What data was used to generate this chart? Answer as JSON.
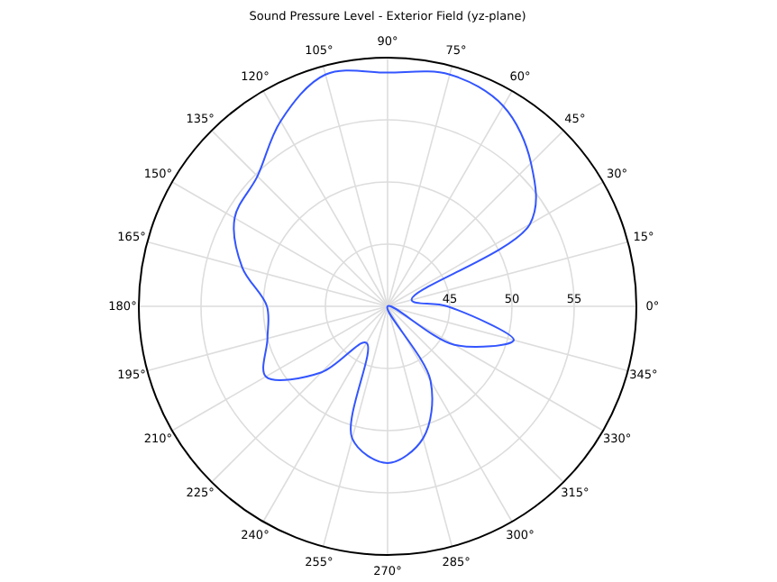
{
  "chart_data": {
    "type": "radar",
    "title": "Sound Pressure Level - Exterior Field (yz-plane)",
    "categories": [
      "90°",
      "75°",
      "60°",
      "45°",
      "30°",
      "15°",
      "0°",
      "345°",
      "330°",
      "315°",
      "300°",
      "285°",
      "270°",
      "255°",
      "240°",
      "225°",
      "210°",
      "195°",
      "180°",
      "165°",
      "150°",
      "135°",
      "120°",
      "105°"
    ],
    "series": [
      {
        "color": "#3355ff",
        "values": [
          58.8,
          59.3,
          58.6,
          56.3,
          53.2,
          42,
          44.8,
          50.5,
          46.2,
          40,
          46.9,
          51,
          52.6,
          51,
          43.4,
          47.5,
          51.3,
          50,
          49.7,
          52.1,
          54.2,
          54.8,
          57.2,
          59.3
        ]
      }
    ],
    "ylim": [
      40,
      60
    ],
    "yticks": [
      45,
      50,
      55
    ],
    "grid": true
  }
}
